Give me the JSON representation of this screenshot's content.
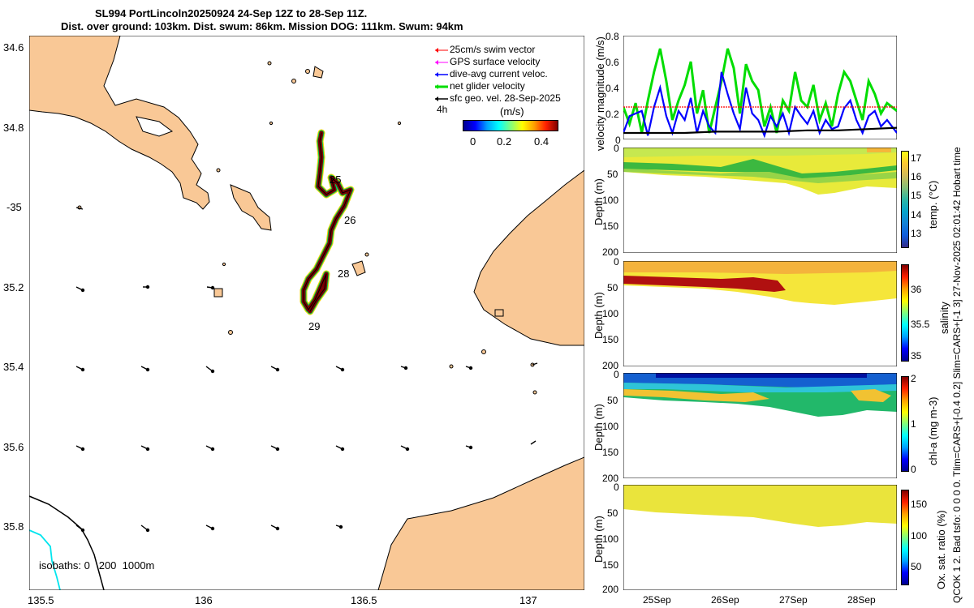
{
  "title": {
    "line1": "SL994 PortLincoln20250924 24-Sep 12Z to 28-Sep 11Z.",
    "line2": "Dist. over ground: 103km. Dist. swum: 86km. Mission DOG: 111km. Swum: 94km"
  },
  "side_note": "QCOK 1 2. Bad tsfo: 0 0 0 0. Tlim=CARS+[-0.4 0.2] Slim=CARS+[-1 3] 27-Nov-2025 02:01:42 Hobart time",
  "colors": {
    "land": "#f9c896",
    "swim_vector": "#ff0000",
    "gps_velocity": "#ff00ff",
    "dive_current": "#0000ff",
    "net_velocity": "#00dd00",
    "sfc_geo": "#000000",
    "track_dark": "#7a0000",
    "isobath_200": "#000000",
    "isobath_1000": "#00e5ee"
  },
  "map": {
    "lon_ticks": [
      "135.5",
      "136",
      "136.5",
      "137"
    ],
    "lat_ticks": [
      "34.6",
      "34.8",
      "-35",
      "35.2",
      "35.4",
      "35.6",
      "35.8"
    ],
    "day_labels": [
      "25",
      "26",
      "28",
      "29"
    ],
    "isobath_text": "isobaths: 0   200  1000m",
    "scale_label": "4h",
    "colorbar": {
      "title": "(m/s)",
      "ticks": [
        "0",
        "0.2",
        "0.4"
      ],
      "range": [
        0,
        0.5
      ]
    },
    "legend": [
      {
        "label": "25cm/s swim vector",
        "color_key": "swim_vector",
        "width": 1
      },
      {
        "label": "GPS surface velocity",
        "color_key": "gps_velocity",
        "width": 1
      },
      {
        "label": "dive-avg current veloc.",
        "color_key": "dive_current",
        "width": 1.5
      },
      {
        "label": "net glider velocity",
        "color_key": "net_velocity",
        "width": 3
      },
      {
        "label": "sfc geo. vel. 28-Sep-2025",
        "color_key": "sfc_geo",
        "width": 1.5
      }
    ]
  },
  "chart_data": [
    {
      "type": "line",
      "title": "",
      "ylabel": "velocity magnitude (m/s)",
      "ylim": [
        0,
        0.8
      ],
      "yticks": [
        "0",
        "0.2",
        "0.4",
        "0.6",
        "0.8"
      ],
      "x_range_days": [
        24.5,
        28.96
      ],
      "series": [
        {
          "name": "net glider velocity",
          "color_key": "net_velocity",
          "x": [
            24.5,
            24.6,
            24.7,
            24.8,
            24.9,
            25.0,
            25.1,
            25.2,
            25.3,
            25.4,
            25.5,
            25.6,
            25.7,
            25.8,
            25.9,
            26.0,
            26.1,
            26.2,
            26.3,
            26.4,
            26.5,
            26.6,
            26.7,
            26.8,
            26.9,
            27.0,
            27.1,
            27.2,
            27.3,
            27.4,
            27.5,
            27.6,
            27.7,
            27.8,
            27.9,
            28.0,
            28.1,
            28.2,
            28.3,
            28.4,
            28.5,
            28.6,
            28.7,
            28.8,
            28.96
          ],
          "y": [
            0.25,
            0.12,
            0.28,
            0.05,
            0.3,
            0.52,
            0.7,
            0.45,
            0.15,
            0.3,
            0.42,
            0.6,
            0.2,
            0.38,
            0.05,
            0.25,
            0.45,
            0.7,
            0.55,
            0.2,
            0.58,
            0.45,
            0.38,
            0.1,
            0.25,
            0.05,
            0.3,
            0.22,
            0.52,
            0.3,
            0.25,
            0.42,
            0.15,
            0.28,
            0.1,
            0.35,
            0.52,
            0.45,
            0.3,
            0.15,
            0.45,
            0.35,
            0.2,
            0.28,
            0.22
          ]
        },
        {
          "name": "dive-avg current veloc.",
          "color_key": "dive_current",
          "x": [
            24.5,
            24.6,
            24.7,
            24.8,
            24.9,
            25.0,
            25.1,
            25.2,
            25.3,
            25.4,
            25.5,
            25.6,
            25.7,
            25.8,
            25.9,
            26.0,
            26.1,
            26.2,
            26.3,
            26.4,
            26.5,
            26.6,
            26.7,
            26.8,
            26.9,
            27.0,
            27.1,
            27.2,
            27.3,
            27.4,
            27.5,
            27.6,
            27.7,
            27.8,
            27.9,
            28.0,
            28.1,
            28.2,
            28.3,
            28.4,
            28.5,
            28.6,
            28.7,
            28.8,
            28.96
          ],
          "y": [
            0.05,
            0.18,
            0.2,
            0.22,
            0.03,
            0.25,
            0.4,
            0.18,
            0.05,
            0.22,
            0.15,
            0.32,
            0.05,
            0.22,
            0.1,
            0.05,
            0.52,
            0.35,
            0.2,
            0.08,
            0.4,
            0.2,
            0.15,
            0.03,
            0.18,
            0.1,
            0.2,
            0.05,
            0.25,
            0.18,
            0.12,
            0.22,
            0.05,
            0.15,
            0.08,
            0.1,
            0.24,
            0.3,
            0.15,
            0.05,
            0.18,
            0.22,
            0.1,
            0.15,
            0.05
          ]
        },
        {
          "name": "25cm/s swim vector",
          "color_key": "swim_vector",
          "x": [
            24.5,
            28.96
          ],
          "y": [
            0.25,
            0.25
          ]
        },
        {
          "name": "sfc geo. vel.",
          "color_key": "sfc_geo",
          "x": [
            24.5,
            25.0,
            25.5,
            26.0,
            26.5,
            27.0,
            27.5,
            28.0,
            28.5,
            28.96
          ],
          "y": [
            0.05,
            0.05,
            0.05,
            0.06,
            0.06,
            0.06,
            0.07,
            0.07,
            0.08,
            0.09
          ]
        }
      ]
    },
    {
      "type": "heatmap",
      "ylabel": "Depth (m)",
      "colorbar_label": "temp. (°C)",
      "ylim": [
        200,
        0
      ],
      "cbar_ticks": [
        "13",
        "14",
        "15",
        "16",
        "17"
      ],
      "cbar_range": [
        12.5,
        17.5
      ],
      "colormap": "parula",
      "yticks": [
        "0",
        "50",
        "100",
        "150",
        "200"
      ]
    },
    {
      "type": "heatmap",
      "ylabel": "Depth (m)",
      "colorbar_label": "salinity",
      "ylim": [
        200,
        0
      ],
      "cbar_ticks": [
        "35",
        "35.5",
        "36"
      ],
      "cbar_range": [
        34.9,
        36.4
      ],
      "colormap": "jet",
      "yticks": [
        "0",
        "50",
        "100",
        "150",
        "200"
      ]
    },
    {
      "type": "heatmap",
      "ylabel": "Depth (m)",
      "colorbar_label": "chl-a  (mg m-3)",
      "ylim": [
        200,
        0
      ],
      "cbar_ticks": [
        "0",
        "1",
        "2"
      ],
      "cbar_range": [
        0,
        2
      ],
      "colormap": "jet",
      "yticks": [
        "0",
        "50",
        "100",
        "150",
        "200"
      ]
    },
    {
      "type": "heatmap",
      "ylabel": "Depth (m)",
      "colorbar_label": "Ox. sat. ratio (%)",
      "ylim": [
        200,
        0
      ],
      "cbar_ticks": [
        "50",
        "100",
        "150"
      ],
      "cbar_range": [
        20,
        175
      ],
      "colormap": "jet",
      "yticks": [
        "0",
        "50",
        "100",
        "150",
        "200"
      ]
    }
  ],
  "time_axis": {
    "ticks": [
      "25Sep",
      "26Sep",
      "27Sep",
      "28Sep"
    ]
  }
}
